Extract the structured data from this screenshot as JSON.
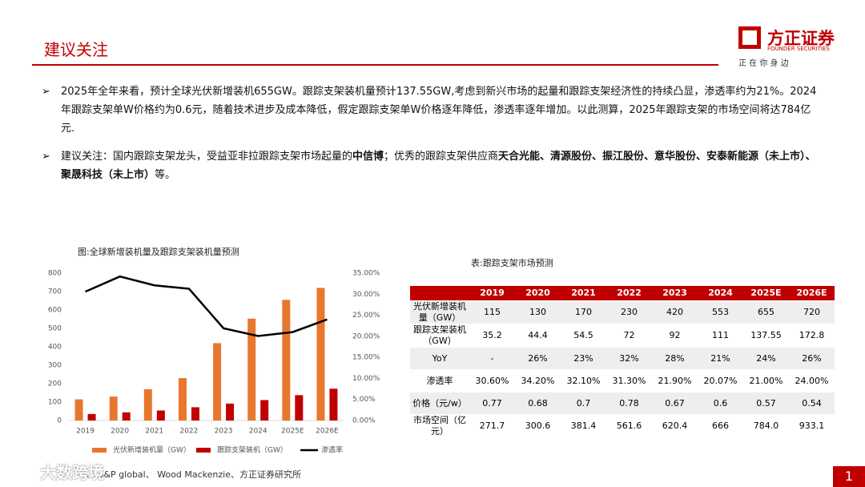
{
  "header": {
    "title": "建议关注",
    "logo": "方正证券",
    "logo_en": "FOUNDER SECURITIES",
    "slogan": "正 在 你 身 边"
  },
  "bullets": [
    [
      {
        "text": "2025年全年来看，预计全球光伏新增装机655GW。跟踪支架装机量预计137.55GW,考虑到新兴市场的起量和跟踪支架经济性的持续凸显，渗透率约为21%。2024年跟踪支架单W价格约为0.6元，随着技术进步及成本降低，假定跟踪支架单W价格逐年降低，渗透率逐年增加。以此测算，2025年跟踪支架的市场空间将达784亿元.",
        "bold": false
      }
    ],
    [
      {
        "text": "建议关注：国内跟踪支架龙头，受益亚非拉跟踪支架市场起量的",
        "bold": false
      },
      {
        "text": "中信博",
        "bold": true
      },
      {
        "text": "；优秀的跟踪支架供应商",
        "bold": false
      },
      {
        "text": "天合光能、清源股份、振江股份、意华股份、安泰新能源（未上市）、聚晟科技（未上市）",
        "bold": true
      },
      {
        "text": "等。",
        "bold": false
      }
    ]
  ],
  "chart_data": {
    "type": "bar",
    "title": "图:全球新增装机量及跟踪支架装机量预测",
    "categories": [
      "2019",
      "2020",
      "2021",
      "2022",
      "2023",
      "2024",
      "2025E",
      "2026E"
    ],
    "series": [
      {
        "name": "光伏新增装机量（GW）",
        "type": "bar",
        "color": "#e8772e",
        "values": [
          115,
          130,
          170,
          230,
          420,
          553,
          655,
          720
        ]
      },
      {
        "name": "跟踪支架装机（GW）",
        "type": "bar",
        "color": "#c00000",
        "values": [
          35.2,
          44.4,
          54.5,
          72,
          92,
          111,
          137.55,
          172.8
        ]
      },
      {
        "name": "渗透率",
        "type": "line",
        "axis": "y2",
        "color": "#000000",
        "values": [
          30.6,
          34.2,
          32.1,
          31.3,
          21.9,
          20.07,
          21,
          24
        ]
      }
    ],
    "ylim": [
      0,
      800
    ],
    "yticks": [
      0,
      100,
      200,
      300,
      400,
      500,
      600,
      700,
      800
    ],
    "y2lim": [
      0,
      35
    ],
    "y2ticks": [
      {
        "value": 0,
        "label": "0.00%"
      },
      {
        "value": 5,
        "label": "5.00%"
      },
      {
        "value": 10,
        "label": "10.00%"
      },
      {
        "value": 15,
        "label": "15.00%"
      },
      {
        "value": 20,
        "label": "20.00%"
      },
      {
        "value": 25,
        "label": "25.00%"
      },
      {
        "value": 30,
        "label": "30.00%"
      },
      {
        "value": 35,
        "label": "35.00%"
      }
    ],
    "grid": false,
    "legend": "bottom"
  },
  "table": {
    "title": "表:跟踪支架市场预测",
    "header": [
      "",
      "2019",
      "2020",
      "2021",
      "2022",
      "2023",
      "2024",
      "2025E",
      "2026E"
    ],
    "rows": [
      [
        "光伏新增装机量（GW）",
        "115",
        "130",
        "170",
        "230",
        "420",
        "553",
        "655",
        "720"
      ],
      [
        "跟踪支架装机（GW）",
        "35.2",
        "44.4",
        "54.5",
        "72",
        "92",
        "111",
        "137.55",
        "172.8"
      ],
      [
        "YoY",
        "-",
        "26%",
        "23%",
        "32%",
        "28%",
        "21%",
        "24%",
        "26%"
      ],
      [
        "渗透率",
        "30.60%",
        "34.20%",
        "32.10%",
        "31.30%",
        "21.90%",
        "20.07%",
        "21.00%",
        "24.00%"
      ],
      [
        "价格（元/w）",
        "0.77",
        "0.68",
        "0.7",
        "0.78",
        "0.67",
        "0.6",
        "0.57",
        "0.54"
      ],
      [
        "市场空间（亿元）",
        "271.7",
        "300.6",
        "381.4",
        "561.6",
        "620.4",
        "666",
        "784.0",
        "933.1"
      ]
    ]
  },
  "footer": {
    "source": "、 S&P global、 Wood Mackenzie、方正证券研究所",
    "watermark": "大数跨境",
    "page": "1"
  }
}
